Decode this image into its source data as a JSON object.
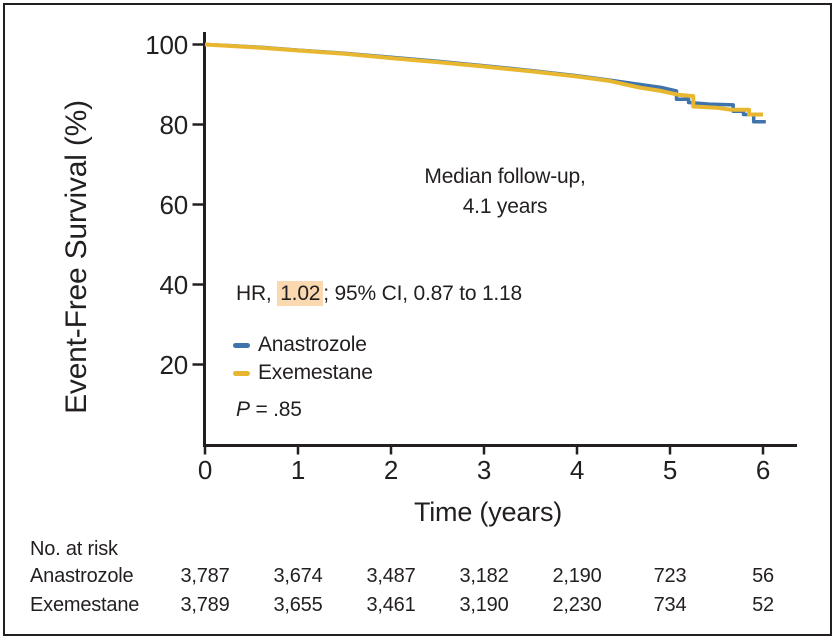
{
  "figure": {
    "annotations": {
      "median_line1": "Median follow-up,",
      "median_line2": "4.1 years",
      "hr_prefix": "HR, ",
      "hr_value": "1.02",
      "hr_suffix": "; 95% CI, 0.87 to 1.18",
      "p_label": "P",
      "p_rest": " = .85"
    },
    "colors": {
      "ink": "#231f20",
      "anastrozole": "#3e74ab",
      "exemestane": "#e8b72f",
      "highlight": "#fad8b0"
    }
  },
  "chart_data": {
    "type": "line",
    "subtype": "kaplan-meier-step",
    "title": "",
    "xlabel": "Time (years)",
    "ylabel": "Event-Free Survival (%)",
    "xlim": [
      0,
      6.4
    ],
    "ylim": [
      0,
      100
    ],
    "x_ticks": [
      0,
      1,
      2,
      3,
      4,
      5,
      6
    ],
    "y_ticks": [
      100,
      80,
      60,
      40,
      20
    ],
    "grid": false,
    "legend_position": "inside-left-middle",
    "annotations": [
      "Median follow-up, 4.1 years",
      "HR, 1.02; 95% CI, 0.87 to 1.18",
      "P = .85"
    ],
    "series": [
      {
        "name": "Anastrozole",
        "color": "#3e74ab",
        "width": 3.5,
        "points": [
          [
            0,
            100
          ],
          [
            0.3,
            99.7
          ],
          [
            0.6,
            99.3
          ],
          [
            1,
            98.6
          ],
          [
            1.5,
            97.8
          ],
          [
            2,
            96.8
          ],
          [
            2.5,
            95.8
          ],
          [
            3,
            94.7
          ],
          [
            3.5,
            93.5
          ],
          [
            4,
            92.2
          ],
          [
            4.35,
            91.1
          ],
          [
            4.68,
            90.0
          ],
          [
            4.9,
            89.3
          ],
          [
            5.07,
            88.4
          ],
          [
            5.07,
            86.3
          ],
          [
            5.2,
            86.3
          ],
          [
            5.2,
            85.5
          ],
          [
            5.42,
            85.1
          ],
          [
            5.68,
            84.9
          ],
          [
            5.68,
            83.3
          ],
          [
            5.79,
            83.3
          ],
          [
            5.79,
            82.5
          ],
          [
            5.9,
            82.5
          ],
          [
            5.9,
            80.7
          ],
          [
            6.03,
            80.7
          ]
        ]
      },
      {
        "name": "Exemestane",
        "color": "#e8b72f",
        "width": 4,
        "points": [
          [
            0,
            100
          ],
          [
            0.3,
            99.6
          ],
          [
            0.6,
            99.2
          ],
          [
            1,
            98.5
          ],
          [
            1.5,
            97.7
          ],
          [
            2,
            96.6
          ],
          [
            2.5,
            95.6
          ],
          [
            3,
            94.5
          ],
          [
            3.5,
            93.3
          ],
          [
            4,
            92.0
          ],
          [
            4.35,
            90.9
          ],
          [
            4.68,
            89.2
          ],
          [
            4.9,
            88.4
          ],
          [
            5.1,
            87.4
          ],
          [
            5.25,
            87.1
          ],
          [
            5.25,
            84.5
          ],
          [
            5.5,
            84.2
          ],
          [
            5.65,
            83.7
          ],
          [
            5.85,
            83.7
          ],
          [
            5.85,
            82.5
          ],
          [
            6.0,
            82.5
          ]
        ]
      }
    ],
    "risk_table": {
      "header": "No. at risk",
      "rows": [
        {
          "label": "Anastrozole",
          "values": [
            "3,787",
            "3,674",
            "3,487",
            "3,182",
            "2,190",
            "723",
            "56"
          ]
        },
        {
          "label": "Exemestane",
          "values": [
            "3,789",
            "3,655",
            "3,461",
            "3,190",
            "2,230",
            "734",
            "52"
          ]
        }
      ]
    }
  }
}
